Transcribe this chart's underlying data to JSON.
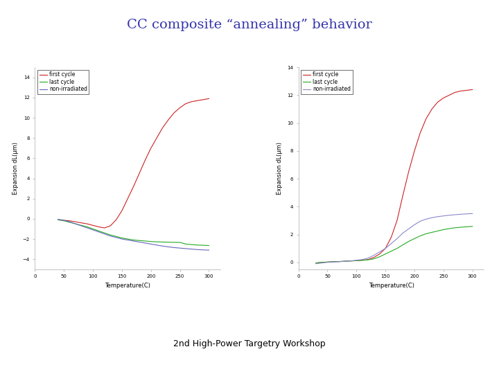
{
  "title": "CC composite “annealing” behavior",
  "title_color": "#3333aa",
  "title_fontsize": 14,
  "footer": "2nd High-Power Targetry Workshop",
  "footer_fontsize": 9,
  "background_color": "#ffffff",
  "xlabel": "Temperature(C)",
  "ylabel": "Expansion dL(µm)",
  "xlim": [
    0,
    320
  ],
  "xticks": [
    0,
    50,
    100,
    150,
    200,
    250,
    300
  ],
  "plot1": {
    "ylim": [
      -5,
      15
    ],
    "yticks": [
      -4,
      -2,
      0,
      2,
      4,
      6,
      8,
      10,
      12,
      14
    ],
    "first_cycle": {
      "color": "#cc2222",
      "x": [
        40,
        50,
        60,
        70,
        80,
        90,
        100,
        110,
        120,
        130,
        140,
        150,
        160,
        170,
        180,
        190,
        200,
        210,
        220,
        230,
        240,
        250,
        260,
        270,
        280,
        290,
        300
      ],
      "y": [
        -0.1,
        -0.15,
        -0.2,
        -0.3,
        -0.4,
        -0.5,
        -0.65,
        -0.8,
        -0.9,
        -0.7,
        -0.1,
        0.8,
        2.0,
        3.2,
        4.5,
        5.8,
        7.0,
        8.0,
        9.0,
        9.8,
        10.5,
        11.0,
        11.4,
        11.6,
        11.7,
        11.8,
        11.9
      ]
    },
    "last_cycle": {
      "color": "#22aa22",
      "x": [
        40,
        50,
        60,
        70,
        80,
        90,
        100,
        110,
        120,
        130,
        140,
        150,
        160,
        170,
        180,
        190,
        200,
        210,
        220,
        230,
        240,
        250,
        260,
        270,
        280,
        290,
        300
      ],
      "y": [
        -0.1,
        -0.2,
        -0.35,
        -0.5,
        -0.65,
        -0.8,
        -1.0,
        -1.2,
        -1.4,
        -1.6,
        -1.75,
        -1.9,
        -2.0,
        -2.1,
        -2.15,
        -2.2,
        -2.25,
        -2.28,
        -2.3,
        -2.32,
        -2.33,
        -2.34,
        -2.5,
        -2.55,
        -2.6,
        -2.62,
        -2.65
      ]
    },
    "non_irradiated": {
      "color": "#6666bb",
      "x": [
        40,
        50,
        60,
        70,
        80,
        90,
        100,
        110,
        120,
        130,
        140,
        150,
        160,
        170,
        180,
        190,
        200,
        210,
        220,
        230,
        240,
        250,
        260,
        270,
        280,
        290,
        300
      ],
      "y": [
        -0.05,
        -0.15,
        -0.3,
        -0.5,
        -0.7,
        -0.9,
        -1.1,
        -1.3,
        -1.5,
        -1.7,
        -1.85,
        -2.0,
        -2.1,
        -2.2,
        -2.3,
        -2.4,
        -2.5,
        -2.6,
        -2.7,
        -2.78,
        -2.85,
        -2.9,
        -2.95,
        -3.0,
        -3.05,
        -3.08,
        -3.1
      ]
    }
  },
  "plot2": {
    "ylim": [
      -0.5,
      14
    ],
    "yticks": [
      0,
      2,
      4,
      6,
      8,
      10,
      12,
      14
    ],
    "first_cycle": {
      "color": "#cc2222",
      "x": [
        30,
        40,
        50,
        60,
        70,
        80,
        90,
        100,
        110,
        120,
        130,
        140,
        150,
        160,
        170,
        180,
        190,
        200,
        210,
        220,
        230,
        240,
        250,
        260,
        270,
        280,
        290,
        300
      ],
      "y": [
        -0.05,
        0.0,
        0.02,
        0.05,
        0.05,
        0.08,
        0.1,
        0.12,
        0.15,
        0.2,
        0.35,
        0.6,
        1.0,
        1.8,
        3.0,
        4.8,
        6.5,
        8.0,
        9.3,
        10.3,
        11.0,
        11.5,
        11.8,
        12.0,
        12.2,
        12.3,
        12.35,
        12.4
      ]
    },
    "last_cycle": {
      "color": "#22aa22",
      "x": [
        30,
        40,
        50,
        60,
        70,
        80,
        90,
        100,
        110,
        120,
        130,
        140,
        150,
        160,
        170,
        180,
        190,
        200,
        210,
        220,
        230,
        240,
        250,
        260,
        270,
        280,
        290,
        300
      ],
      "y": [
        -0.05,
        0.0,
        0.02,
        0.04,
        0.06,
        0.08,
        0.1,
        0.12,
        0.14,
        0.18,
        0.25,
        0.4,
        0.6,
        0.8,
        1.0,
        1.25,
        1.5,
        1.7,
        1.9,
        2.05,
        2.15,
        2.25,
        2.35,
        2.42,
        2.48,
        2.52,
        2.55,
        2.58
      ]
    },
    "non_irradiated": {
      "color": "#8888cc",
      "x": [
        30,
        40,
        50,
        60,
        70,
        80,
        90,
        100,
        110,
        120,
        130,
        140,
        150,
        160,
        170,
        180,
        190,
        200,
        210,
        220,
        230,
        240,
        250,
        260,
        270,
        280,
        290,
        300
      ],
      "y": [
        -0.1,
        -0.05,
        0.0,
        0.02,
        0.05,
        0.08,
        0.1,
        0.15,
        0.2,
        0.3,
        0.5,
        0.75,
        1.0,
        1.35,
        1.7,
        2.1,
        2.4,
        2.7,
        2.95,
        3.1,
        3.2,
        3.28,
        3.33,
        3.38,
        3.42,
        3.45,
        3.48,
        3.5
      ]
    }
  },
  "legend_labels": [
    "first cycle",
    "last cycle",
    "non-irradiated"
  ],
  "legend_fontsize": 5.5,
  "tick_fontsize": 5,
  "axis_label_fontsize": 6,
  "linewidth": 0.8
}
